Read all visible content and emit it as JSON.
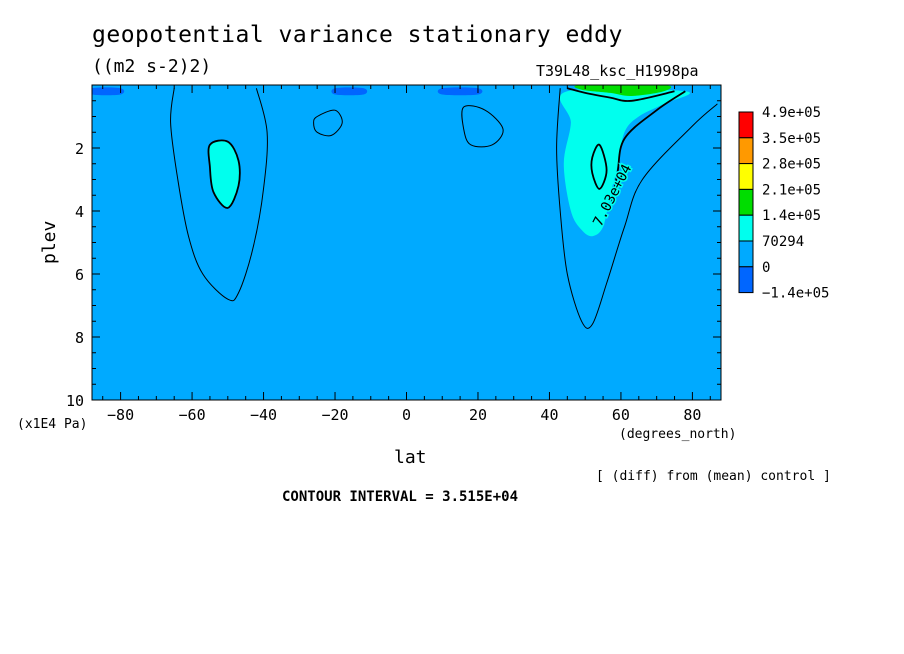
{
  "header": {
    "title": "geopotential variance stationary eddy",
    "units": "((m2 s-2)2)",
    "run_id": "T39L48_ksc_H1998pa",
    "diff_note": "[ (diff) from (mean) control ]",
    "contour_interval": "CONTOUR INTERVAL = 3.515E+04"
  },
  "chart_data": {
    "type": "heatmap",
    "xlabel": "lat",
    "xunit": "(degrees_north)",
    "ylabel": "plev",
    "yunit": "(x1E4 Pa)",
    "xlim": [
      -88,
      88
    ],
    "ylim": [
      10,
      0
    ],
    "xticks": [
      -80,
      -60,
      -40,
      -20,
      0,
      20,
      40,
      60,
      80
    ],
    "yticks": [
      2,
      4,
      6,
      8,
      10
    ],
    "contour_interval": 35150,
    "contour_label": "7.03e+04",
    "contour_label_pos": {
      "lat": 57,
      "plev": 3.6
    },
    "colorbar": {
      "labels": [
        "4.9e+05",
        "3.5e+05",
        "2.8e+05",
        "2.1e+05",
        "1.4e+05",
        "70294",
        "0",
        "-1.4e+05"
      ],
      "colors": [
        "#ff0000",
        "#ff9900",
        "#ffff00",
        "#00dd00",
        "#00ffee",
        "#00aaff",
        "#0066ff"
      ]
    },
    "regions": [
      {
        "name": "cyan",
        "color": "#00ffee",
        "points": [
          [
            -55,
            1.9
          ],
          [
            -50,
            1.8
          ],
          [
            -47,
            2.4
          ],
          [
            -47,
            3.2
          ],
          [
            -50,
            3.9
          ],
          [
            -54,
            3.4
          ],
          [
            -55,
            2.6
          ]
        ]
      },
      {
        "name": "cyan",
        "color": "#00ffee",
        "points": [
          [
            44,
            2.5
          ],
          [
            46,
            1.2
          ],
          [
            45,
            0.2
          ],
          [
            78,
            0.2
          ],
          [
            72,
            0.6
          ],
          [
            65,
            1.0
          ],
          [
            61,
            1.5
          ],
          [
            59,
            2.6
          ],
          [
            57,
            3.5
          ],
          [
            55,
            4.5
          ],
          [
            52,
            4.8
          ],
          [
            49,
            4.6
          ],
          [
            46,
            4.0
          ]
        ]
      },
      {
        "name": "green",
        "color": "#00dd00",
        "points": [
          [
            49,
            0.15
          ],
          [
            57,
            0.25
          ],
          [
            63,
            0.35
          ],
          [
            72,
            0.2
          ]
        ]
      },
      {
        "name": "blue",
        "color": "#0066ff",
        "points": [
          [
            -88,
            0.1
          ],
          [
            -80,
            0.1
          ],
          [
            -80,
            0.3
          ],
          [
            -88,
            0.3
          ]
        ]
      },
      {
        "name": "blue",
        "color": "#0066ff",
        "points": [
          [
            -20,
            0.1
          ],
          [
            -12,
            0.1
          ],
          [
            -12,
            0.3
          ],
          [
            -20,
            0.3
          ]
        ]
      },
      {
        "name": "blue",
        "color": "#0066ff",
        "points": [
          [
            10,
            0.1
          ],
          [
            20,
            0.1
          ],
          [
            20,
            0.3
          ],
          [
            10,
            0.3
          ]
        ]
      }
    ],
    "contours": [
      {
        "level": 0,
        "points": [
          [
            -65,
            0.1
          ],
          [
            -66,
            1.2
          ],
          [
            -64,
            3.0
          ],
          [
            -61,
            4.8
          ],
          [
            -57,
            6.0
          ],
          [
            -50,
            6.8
          ],
          [
            -47,
            6.6
          ],
          [
            -43,
            5.2
          ],
          [
            -40,
            3.3
          ],
          [
            -39,
            1.5
          ],
          [
            -42,
            0.1
          ]
        ]
      },
      {
        "level": 0,
        "points": [
          [
            43,
            0.1
          ],
          [
            42,
            2.0
          ],
          [
            43,
            4.0
          ],
          [
            45,
            6.0
          ],
          [
            49,
            7.5
          ],
          [
            52,
            7.6
          ],
          [
            56,
            6.3
          ],
          [
            61,
            4.5
          ],
          [
            66,
            3.0
          ],
          [
            80,
            1.3
          ],
          [
            87,
            0.6
          ]
        ]
      },
      {
        "level": 0,
        "points": [
          [
            -25,
            1.0
          ],
          [
            -20,
            0.8
          ],
          [
            -18,
            1.2
          ],
          [
            -21,
            1.6
          ],
          [
            -25,
            1.5
          ],
          [
            -26,
            1.2
          ],
          [
            -25,
            1.0
          ]
        ]
      },
      {
        "level": 0,
        "points": [
          [
            16,
            0.7
          ],
          [
            22,
            0.8
          ],
          [
            27,
            1.4
          ],
          [
            24,
            1.9
          ],
          [
            18,
            1.9
          ],
          [
            16,
            1.4
          ],
          [
            16,
            0.7
          ]
        ]
      },
      {
        "level": 70294,
        "points": [
          [
            -55,
            1.9
          ],
          [
            -50,
            1.8
          ],
          [
            -47,
            2.4
          ],
          [
            -47,
            3.2
          ],
          [
            -50,
            3.9
          ],
          [
            -54,
            3.4
          ],
          [
            -55,
            2.6
          ],
          [
            -55,
            1.9
          ]
        ]
      },
      {
        "level": 70294,
        "points": [
          [
            52,
            2.3
          ],
          [
            54,
            1.9
          ],
          [
            56,
            2.7
          ],
          [
            54,
            3.3
          ],
          [
            52,
            2.8
          ],
          [
            52,
            2.3
          ]
        ]
      },
      {
        "level": 70294,
        "points": [
          [
            57,
            4.0
          ],
          [
            59,
            2.8
          ],
          [
            61,
            1.7
          ],
          [
            70,
            0.8
          ],
          [
            78,
            0.2
          ]
        ]
      },
      {
        "level": 105000,
        "points": [
          [
            45,
            0.1
          ],
          [
            50,
            0.25
          ],
          [
            57,
            0.4
          ],
          [
            63,
            0.5
          ],
          [
            75,
            0.2
          ]
        ]
      }
    ]
  }
}
